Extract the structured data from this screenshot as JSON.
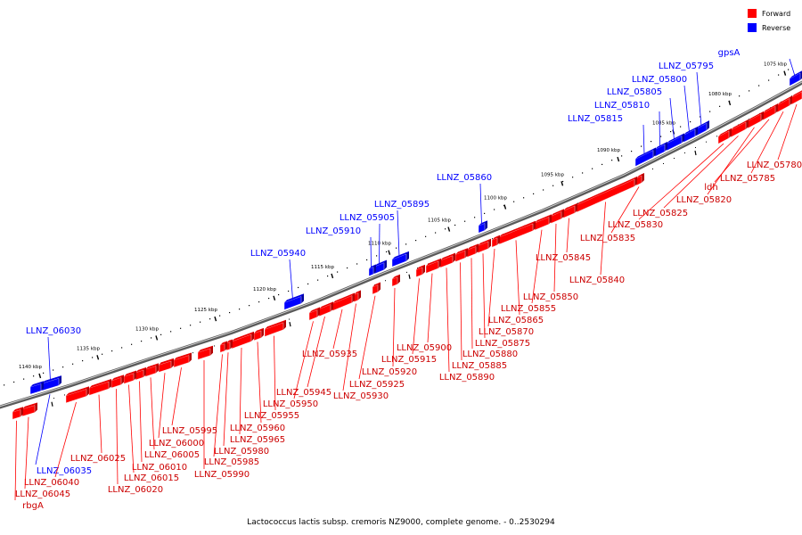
{
  "caption": "Lactococcus lactis subsp. cremoris NZ9000, complete genome. - 0..2530294",
  "legend": [
    {
      "label": "Forward",
      "color": "#ff0000"
    },
    {
      "label": "Reverse",
      "color": "#0000ff"
    }
  ],
  "colors": {
    "forward": "#ff0000",
    "forward_dark": "#b30000",
    "reverse": "#0000ff",
    "reverse_dark": "#00009e",
    "backbone": "#808080"
  },
  "ticks": [
    "1075 kbp",
    "1080 kbp",
    "1085 kbp",
    "1090 kbp",
    "1095 kbp",
    "1100 kbp",
    "1105 kbp",
    "1110 kbp",
    "1115 kbp",
    "1120 kbp",
    "1125 kbp",
    "1130 kbp",
    "1135 kbp",
    "1140 kbp"
  ],
  "reverse_genes": [
    "gpsA",
    "LLNZ_05795",
    "LLNZ_05800",
    "LLNZ_05805",
    "LLNZ_05810",
    "LLNZ_05815",
    "LLNZ_05860",
    "LLNZ_05895",
    "LLNZ_05905",
    "LLNZ_05910",
    "LLNZ_05940",
    "LLNZ_06030",
    "LLNZ_06035"
  ],
  "forward_genes": [
    "LLNZ_05780",
    "LLNZ_05785",
    "ldh",
    "LLNZ_05820",
    "LLNZ_05825",
    "LLNZ_05830",
    "LLNZ_05835",
    "LLNZ_05840",
    "LLNZ_05845",
    "LLNZ_05850",
    "LLNZ_05855",
    "LLNZ_05865",
    "LLNZ_05870",
    "LLNZ_05875",
    "LLNZ_05880",
    "LLNZ_05885",
    "LLNZ_05890",
    "LLNZ_05900",
    "LLNZ_05915",
    "LLNZ_05920",
    "LLNZ_05925",
    "LLNZ_05930",
    "LLNZ_05935",
    "LLNZ_05945",
    "LLNZ_05950",
    "LLNZ_05955",
    "LLNZ_05960",
    "LLNZ_05965",
    "LLNZ_05980",
    "LLNZ_05985",
    "LLNZ_05990",
    "LLNZ_05995",
    "LLNZ_06000",
    "LLNZ_06005",
    "LLNZ_06010",
    "LLNZ_06015",
    "LLNZ_06020",
    "LLNZ_06025",
    "LLNZ_06040",
    "LLNZ_06045",
    "rbgA"
  ]
}
